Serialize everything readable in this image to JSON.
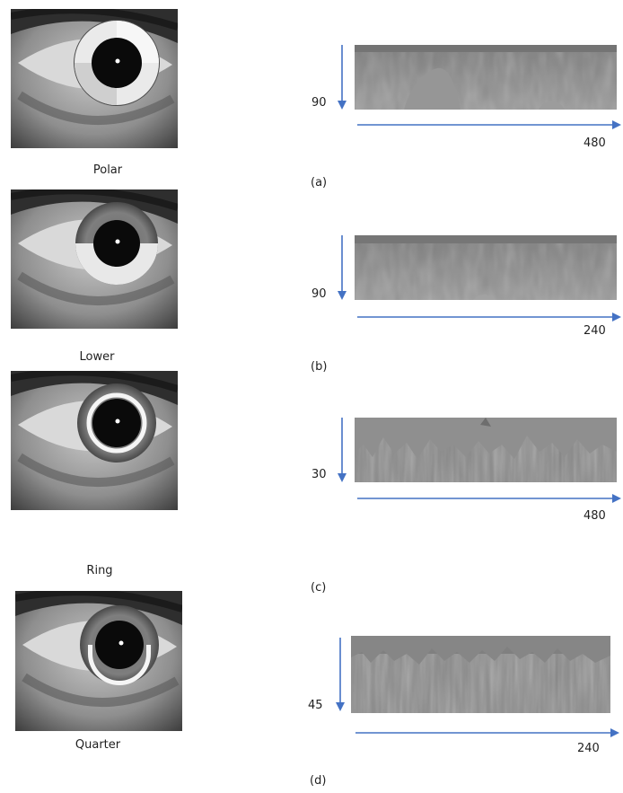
{
  "figure": {
    "panels": [
      {
        "method": "Polar",
        "label": "(a)",
        "height_value": "90",
        "width_value": "480"
      },
      {
        "method": "Lower",
        "label": "(b)",
        "height_value": "90",
        "width_value": "240"
      },
      {
        "method": "Ring",
        "label": "(c)",
        "height_value": "30",
        "width_value": "480"
      },
      {
        "method": "Quarter",
        "label": "(d)",
        "height_value": "45",
        "width_value": "240"
      }
    ],
    "arrow_color": "#4472c4",
    "strip_color": "#8a8a8a",
    "highlight_color": "#f2f2f2"
  }
}
